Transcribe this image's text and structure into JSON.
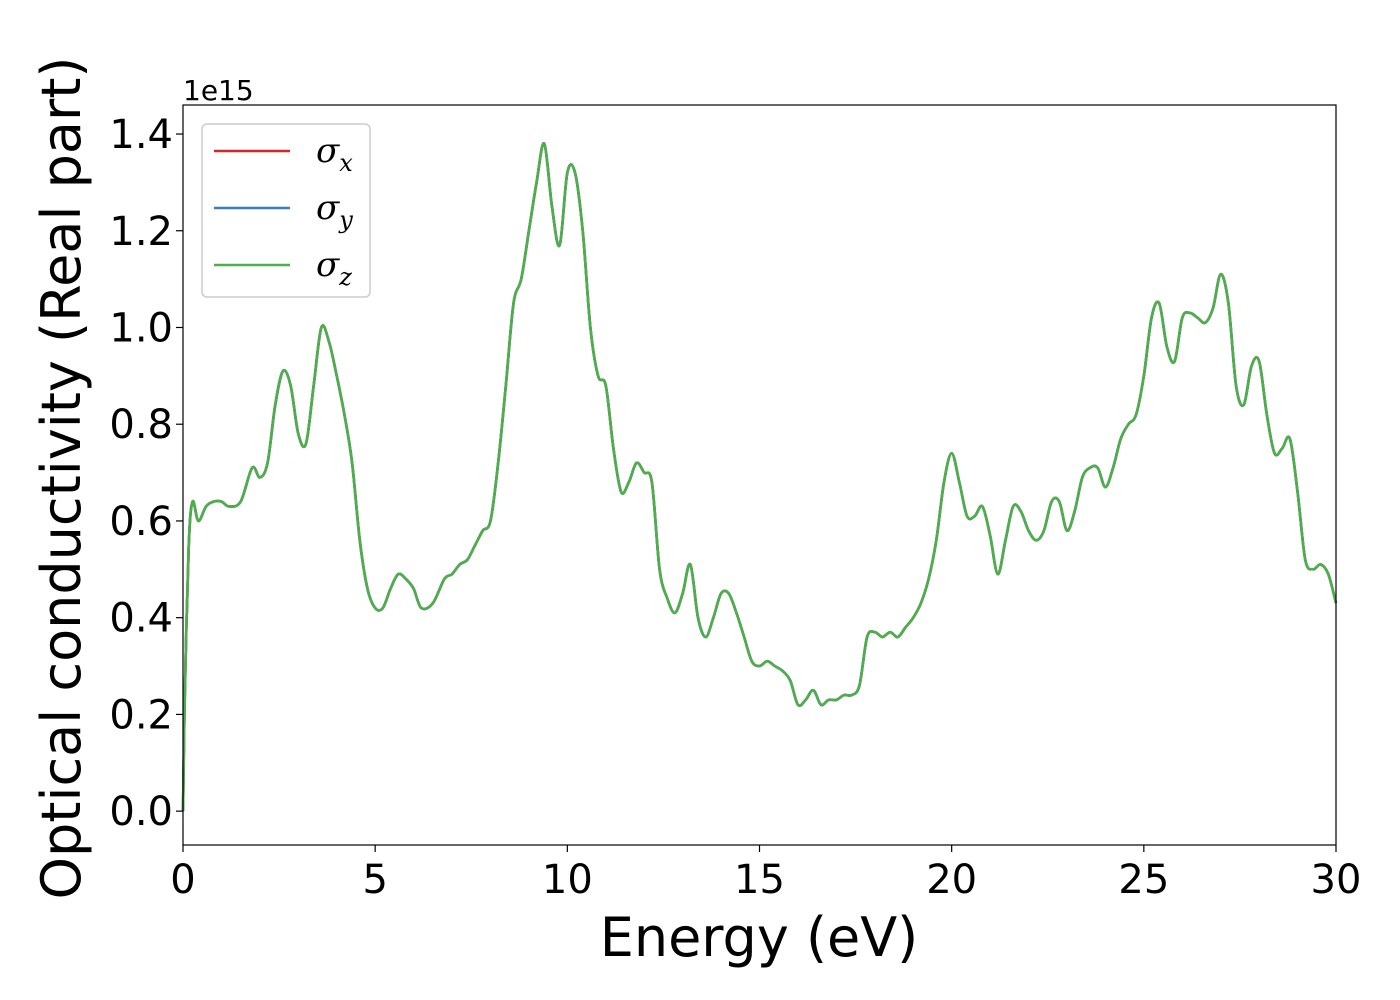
{
  "chart_data": {
    "type": "line",
    "title": "",
    "xlabel": "Energy (eV)",
    "ylabel": "Optical conductivity (Real part)",
    "y_offset_label": "1e15",
    "xlim": [
      0,
      30
    ],
    "ylim": [
      -0.07,
      1.46
    ],
    "x_ticks": [
      0,
      5,
      10,
      15,
      20,
      25,
      30
    ],
    "x_tick_labels": [
      "0",
      "5",
      "10",
      "15",
      "20",
      "25",
      "30"
    ],
    "y_ticks": [
      0.0,
      0.2,
      0.4,
      0.6,
      0.8,
      1.0,
      1.2,
      1.4
    ],
    "y_tick_labels": [
      "0.0",
      "0.2",
      "0.4",
      "0.6",
      "0.8",
      "1.0",
      "1.2",
      "1.4"
    ],
    "grid": false,
    "legend_position": "top-left",
    "x": [
      0,
      0.05,
      0.15,
      0.25,
      0.4,
      0.6,
      0.8,
      1.0,
      1.2,
      1.5,
      1.8,
      2.0,
      2.2,
      2.4,
      2.6,
      2.8,
      3.0,
      3.2,
      3.4,
      3.6,
      3.8,
      4.0,
      4.2,
      4.4,
      4.6,
      4.8,
      5.0,
      5.2,
      5.4,
      5.6,
      5.8,
      6.0,
      6.2,
      6.5,
      6.8,
      7.0,
      7.2,
      7.4,
      7.6,
      7.8,
      8.0,
      8.2,
      8.4,
      8.6,
      8.8,
      9.0,
      9.2,
      9.4,
      9.6,
      9.8,
      10.0,
      10.2,
      10.4,
      10.6,
      10.8,
      11.0,
      11.2,
      11.4,
      11.6,
      11.8,
      12.0,
      12.2,
      12.4,
      12.6,
      12.8,
      13.0,
      13.2,
      13.4,
      13.6,
      13.8,
      14.0,
      14.2,
      14.4,
      14.6,
      14.8,
      15.0,
      15.2,
      15.4,
      15.6,
      15.8,
      16.0,
      16.2,
      16.4,
      16.6,
      16.8,
      17.0,
      17.2,
      17.4,
      17.6,
      17.8,
      18.0,
      18.2,
      18.4,
      18.6,
      18.8,
      19.0,
      19.2,
      19.4,
      19.6,
      19.8,
      20.0,
      20.2,
      20.4,
      20.6,
      20.8,
      21.0,
      21.2,
      21.4,
      21.6,
      21.8,
      22.0,
      22.2,
      22.4,
      22.6,
      22.8,
      23.0,
      23.2,
      23.4,
      23.6,
      23.8,
      24.0,
      24.2,
      24.4,
      24.6,
      24.8,
      25.0,
      25.2,
      25.4,
      25.6,
      25.8,
      26.0,
      26.2,
      26.4,
      26.6,
      26.8,
      27.0,
      27.2,
      27.4,
      27.6,
      27.8,
      28.0,
      28.2,
      28.4,
      28.6,
      28.8,
      29.0,
      29.2,
      29.4,
      29.6,
      29.8,
      30.0
    ],
    "series": [
      {
        "name": "σx",
        "label_base": "σ",
        "label_sub": "x",
        "color": "#d62728"
      },
      {
        "name": "σy",
        "label_base": "σ",
        "label_sub": "y",
        "color": "#377eb8"
      },
      {
        "name": "σz",
        "label_base": "σ",
        "label_sub": "z",
        "color": "#4daf4a"
      }
    ],
    "values": [
      0.0,
      0.25,
      0.55,
      0.64,
      0.6,
      0.63,
      0.64,
      0.64,
      0.63,
      0.64,
      0.71,
      0.69,
      0.72,
      0.84,
      0.91,
      0.88,
      0.78,
      0.76,
      0.88,
      1.0,
      0.97,
      0.9,
      0.82,
      0.72,
      0.56,
      0.46,
      0.42,
      0.42,
      0.46,
      0.49,
      0.48,
      0.46,
      0.42,
      0.43,
      0.48,
      0.49,
      0.51,
      0.52,
      0.55,
      0.58,
      0.6,
      0.72,
      0.88,
      1.05,
      1.1,
      1.2,
      1.3,
      1.38,
      1.25,
      1.17,
      1.32,
      1.32,
      1.2,
      1.0,
      0.9,
      0.88,
      0.75,
      0.66,
      0.68,
      0.72,
      0.7,
      0.68,
      0.5,
      0.44,
      0.41,
      0.45,
      0.51,
      0.4,
      0.36,
      0.4,
      0.45,
      0.45,
      0.41,
      0.36,
      0.31,
      0.3,
      0.31,
      0.3,
      0.29,
      0.27,
      0.22,
      0.23,
      0.25,
      0.22,
      0.23,
      0.23,
      0.24,
      0.24,
      0.26,
      0.36,
      0.37,
      0.36,
      0.37,
      0.36,
      0.38,
      0.4,
      0.43,
      0.48,
      0.56,
      0.68,
      0.74,
      0.68,
      0.61,
      0.61,
      0.63,
      0.57,
      0.49,
      0.56,
      0.63,
      0.62,
      0.58,
      0.56,
      0.58,
      0.64,
      0.64,
      0.58,
      0.62,
      0.69,
      0.71,
      0.71,
      0.67,
      0.71,
      0.77,
      0.8,
      0.82,
      0.9,
      1.02,
      1.05,
      0.96,
      0.93,
      1.02,
      1.03,
      1.02,
      1.01,
      1.04,
      1.11,
      1.05,
      0.88,
      0.84,
      0.92,
      0.93,
      0.82,
      0.74,
      0.75,
      0.77,
      0.66,
      0.52,
      0.5,
      0.51,
      0.49,
      0.43
    ]
  }
}
